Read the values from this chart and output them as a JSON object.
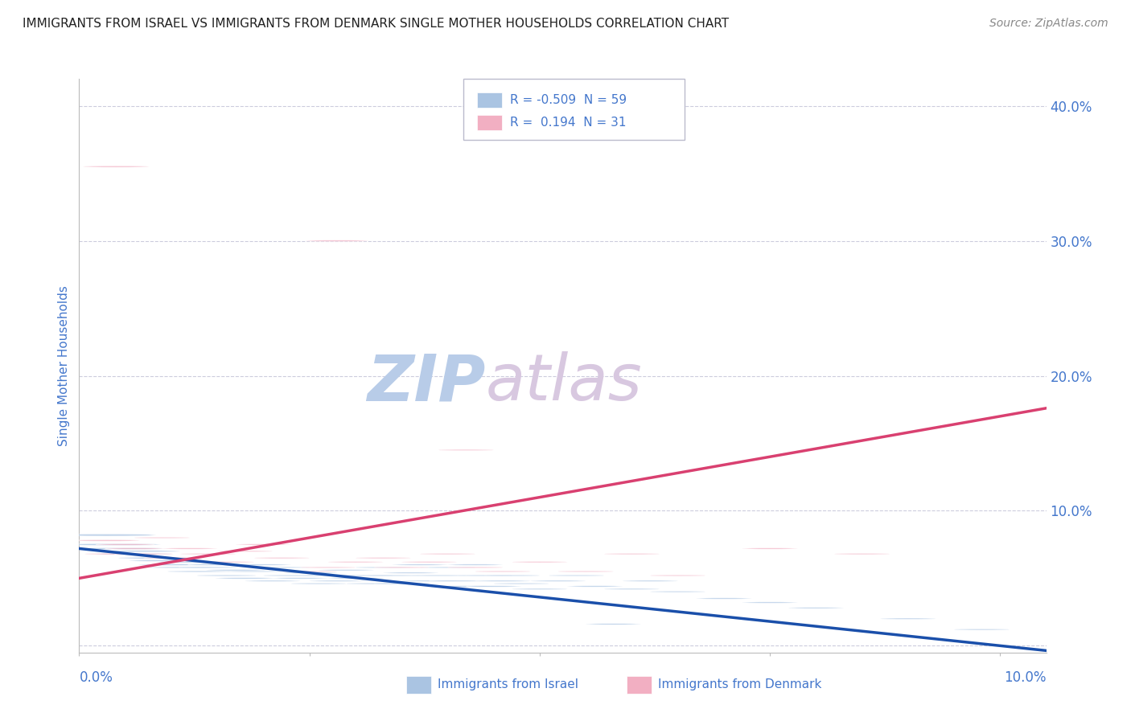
{
  "title": "IMMIGRANTS FROM ISRAEL VS IMMIGRANTS FROM DENMARK SINGLE MOTHER HOUSEHOLDS CORRELATION CHART",
  "source": "Source: ZipAtlas.com",
  "ylabel": "Single Mother Households",
  "r_israel": -0.509,
  "n_israel": 59,
  "r_denmark": 0.194,
  "n_denmark": 31,
  "color_israel": "#aac4e2",
  "color_denmark": "#f2afc2",
  "line_color_israel": "#1a4faa",
  "line_color_denmark": "#d94070",
  "axis_color": "#4477cc",
  "title_color": "#222222",
  "watermark_color_zip": "#b8cce8",
  "watermark_color_atlas": "#d8c8e0",
  "grid_color": "#ccccdd",
  "legend_text_color": "#4477cc",
  "israel_line_intercept": 0.072,
  "israel_line_slope": -0.72,
  "denmark_line_intercept": 0.05,
  "denmark_line_slope": 1.2,
  "israel_points": [
    [
      0.003,
      0.082,
      22
    ],
    [
      0.004,
      0.075,
      18
    ],
    [
      0.005,
      0.072,
      15
    ],
    [
      0.006,
      0.068,
      13
    ],
    [
      0.007,
      0.07,
      12
    ],
    [
      0.008,
      0.065,
      11
    ],
    [
      0.009,
      0.063,
      10
    ],
    [
      0.01,
      0.06,
      10
    ],
    [
      0.011,
      0.058,
      9
    ],
    [
      0.012,
      0.062,
      9
    ],
    [
      0.013,
      0.055,
      9
    ],
    [
      0.014,
      0.058,
      8
    ],
    [
      0.015,
      0.06,
      8
    ],
    [
      0.016,
      0.052,
      8
    ],
    [
      0.017,
      0.056,
      8
    ],
    [
      0.018,
      0.05,
      8
    ],
    [
      0.019,
      0.055,
      7
    ],
    [
      0.02,
      0.06,
      7
    ],
    [
      0.021,
      0.048,
      7
    ],
    [
      0.022,
      0.058,
      7
    ],
    [
      0.023,
      0.052,
      7
    ],
    [
      0.024,
      0.05,
      7
    ],
    [
      0.025,
      0.054,
      7
    ],
    [
      0.026,
      0.046,
      7
    ],
    [
      0.027,
      0.052,
      7
    ],
    [
      0.028,
      0.048,
      7
    ],
    [
      0.029,
      0.056,
      7
    ],
    [
      0.03,
      0.05,
      7
    ],
    [
      0.031,
      0.052,
      7
    ],
    [
      0.032,
      0.046,
      7
    ],
    [
      0.033,
      0.058,
      7
    ],
    [
      0.034,
      0.052,
      7
    ],
    [
      0.035,
      0.046,
      7
    ],
    [
      0.036,
      0.054,
      7
    ],
    [
      0.037,
      0.06,
      7
    ],
    [
      0.038,
      0.048,
      7
    ],
    [
      0.039,
      0.052,
      7
    ],
    [
      0.04,
      0.058,
      7
    ],
    [
      0.041,
      0.048,
      7
    ],
    [
      0.042,
      0.044,
      7
    ],
    [
      0.043,
      0.06,
      7
    ],
    [
      0.044,
      0.052,
      7
    ],
    [
      0.045,
      0.044,
      7
    ],
    [
      0.046,
      0.048,
      7
    ],
    [
      0.047,
      0.052,
      7
    ],
    [
      0.048,
      0.046,
      7
    ],
    [
      0.05,
      0.042,
      7
    ],
    [
      0.052,
      0.048,
      7
    ],
    [
      0.054,
      0.052,
      7
    ],
    [
      0.056,
      0.044,
      7
    ],
    [
      0.058,
      0.016,
      7
    ],
    [
      0.06,
      0.042,
      7
    ],
    [
      0.062,
      0.048,
      7
    ],
    [
      0.065,
      0.04,
      7
    ],
    [
      0.07,
      0.035,
      7
    ],
    [
      0.075,
      0.032,
      7
    ],
    [
      0.08,
      0.028,
      7
    ],
    [
      0.09,
      0.02,
      7
    ],
    [
      0.098,
      0.012,
      7
    ]
  ],
  "denmark_points": [
    [
      0.003,
      0.078,
      10
    ],
    [
      0.004,
      0.068,
      9
    ],
    [
      0.005,
      0.075,
      8
    ],
    [
      0.006,
      0.072,
      8
    ],
    [
      0.007,
      0.068,
      8
    ],
    [
      0.009,
      0.08,
      7
    ],
    [
      0.01,
      0.065,
      7
    ],
    [
      0.012,
      0.072,
      7
    ],
    [
      0.014,
      0.068,
      7
    ],
    [
      0.016,
      0.062,
      7
    ],
    [
      0.018,
      0.07,
      7
    ],
    [
      0.02,
      0.075,
      7
    ],
    [
      0.022,
      0.065,
      7
    ],
    [
      0.025,
      0.055,
      7
    ],
    [
      0.027,
      0.058,
      7
    ],
    [
      0.03,
      0.062,
      7
    ],
    [
      0.033,
      0.065,
      7
    ],
    [
      0.035,
      0.058,
      7
    ],
    [
      0.038,
      0.062,
      7
    ],
    [
      0.04,
      0.068,
      7
    ],
    [
      0.043,
      0.058,
      7
    ],
    [
      0.046,
      0.055,
      7
    ],
    [
      0.05,
      0.062,
      7
    ],
    [
      0.055,
      0.055,
      7
    ],
    [
      0.06,
      0.068,
      7
    ],
    [
      0.065,
      0.052,
      7
    ],
    [
      0.075,
      0.072,
      7
    ],
    [
      0.085,
      0.068,
      7
    ],
    [
      0.004,
      0.355,
      10
    ],
    [
      0.028,
      0.3,
      9
    ],
    [
      0.042,
      0.145,
      7
    ]
  ],
  "xlim": [
    0.0,
    0.105
  ],
  "ylim": [
    -0.005,
    0.42
  ],
  "yticks": [
    0.0,
    0.1,
    0.2,
    0.3,
    0.4
  ],
  "ytick_labels": [
    "",
    "10.0%",
    "20.0%",
    "30.0%",
    "40.0%"
  ],
  "xtick_positions": [
    0.0,
    0.025,
    0.05,
    0.075,
    0.1
  ],
  "background_color": "#ffffff"
}
